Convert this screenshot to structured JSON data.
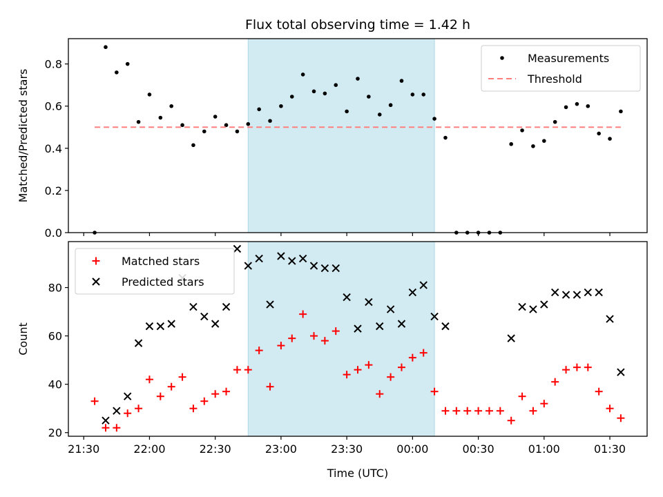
{
  "chart_data": {
    "title": "Flux total observing time = 1.42 h",
    "xlabel": "Time (UTC)",
    "x_tick_labels": [
      "21:30",
      "22:00",
      "22:30",
      "23:00",
      "23:30",
      "00:00",
      "00:30",
      "01:00",
      "01:30"
    ],
    "x_ticks_min": [
      0,
      30,
      60,
      90,
      120,
      150,
      180,
      210,
      240
    ],
    "xlim_min": [
      -7,
      257
    ],
    "shaded_interval_min": [
      75,
      160
    ],
    "shade_color": "#add8e6",
    "panels": [
      {
        "type": "scatter",
        "ylabel": "Matched/Predicted stars",
        "ylim": [
          0,
          0.92
        ],
        "y_ticks": [
          0.0,
          0.2,
          0.4,
          0.6,
          0.8
        ],
        "y_tick_labels": [
          "0.0",
          "0.2",
          "0.4",
          "0.6",
          "0.8"
        ],
        "legend_position": "upper right",
        "series": [
          {
            "name": "Measurements",
            "marker": "dot",
            "color": "#000000",
            "x": [
              5,
              10,
              15,
              20,
              25,
              30,
              35,
              40,
              45,
              50,
              55,
              60,
              65,
              70,
              75,
              80,
              85,
              90,
              95,
              100,
              105,
              110,
              115,
              120,
              125,
              130,
              135,
              140,
              145,
              150,
              155,
              160,
              165,
              170,
              175,
              180,
              185,
              190,
              195,
              200,
              205,
              210,
              215,
              220,
              225,
              230,
              235,
              240,
              245
            ],
            "y": [
              0.0,
              0.88,
              0.76,
              0.8,
              0.525,
              0.655,
              0.545,
              0.6,
              0.51,
              0.415,
              0.48,
              0.55,
              0.51,
              0.48,
              0.515,
              0.585,
              0.53,
              0.6,
              0.645,
              0.75,
              0.67,
              0.66,
              0.7,
              0.575,
              0.73,
              0.645,
              0.56,
              0.605,
              0.72,
              0.655,
              0.655,
              0.54,
              0.45,
              0.0,
              0.0,
              0.0,
              0.0,
              0.0,
              0.42,
              0.485,
              0.41,
              0.435,
              0.525,
              0.595,
              0.61,
              0.6,
              0.47,
              0.445,
              0.575
            ]
          },
          {
            "name": "Threshold",
            "marker": "dashed-line",
            "color": "#ff7f7f",
            "x": [
              5,
              245
            ],
            "y": [
              0.5,
              0.5
            ]
          }
        ]
      },
      {
        "type": "scatter",
        "ylabel": "Count",
        "ylim": [
          18.5,
          99
        ],
        "y_ticks": [
          20,
          40,
          60,
          80
        ],
        "y_tick_labels": [
          "20",
          "40",
          "60",
          "80"
        ],
        "legend_position": "upper left",
        "series": [
          {
            "name": "Matched stars",
            "marker": "plus",
            "color": "#ff0000",
            "x": [
              5,
              10,
              15,
              20,
              25,
              30,
              35,
              40,
              45,
              50,
              55,
              60,
              65,
              70,
              75,
              80,
              85,
              90,
              95,
              100,
              105,
              110,
              115,
              120,
              125,
              130,
              135,
              140,
              145,
              150,
              155,
              160,
              165,
              170,
              175,
              180,
              185,
              190,
              195,
              200,
              205,
              210,
              215,
              220,
              225,
              230,
              235,
              240,
              245
            ],
            "y": [
              33,
              22,
              22,
              28,
              30,
              42,
              35,
              39,
              43,
              30,
              33,
              36,
              37,
              46,
              46,
              54,
              39,
              56,
              59,
              69,
              60,
              58,
              62,
              44,
              46,
              48,
              36,
              43,
              47,
              51,
              53,
              37,
              29,
              29,
              29,
              29,
              29,
              29,
              25,
              35,
              29,
              32,
              41,
              46,
              47,
              47,
              37,
              30,
              26
            ]
          },
          {
            "name": "Predicted stars",
            "marker": "x",
            "color": "#000000",
            "x": [
              10,
              15,
              20,
              25,
              30,
              35,
              40,
              45,
              50,
              55,
              60,
              65,
              70,
              75,
              80,
              85,
              90,
              95,
              100,
              105,
              110,
              115,
              120,
              125,
              130,
              135,
              140,
              145,
              150,
              155,
              160,
              165,
              195,
              200,
              205,
              210,
              215,
              220,
              225,
              230,
              235,
              240,
              245
            ],
            "y": [
              25,
              29,
              35,
              57,
              64,
              64,
              65,
              84,
              72,
              68,
              65,
              72,
              96,
              89,
              92,
              73,
              93,
              91,
              92,
              89,
              88,
              88,
              76,
              63,
              74,
              64,
              71,
              65,
              78,
              81,
              68,
              64,
              59,
              72,
              71,
              73,
              78,
              77,
              77,
              78,
              78,
              67,
              45
            ]
          }
        ]
      }
    ]
  }
}
